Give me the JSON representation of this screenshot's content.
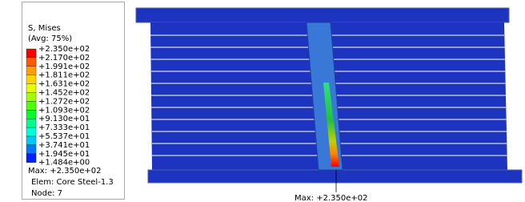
{
  "legend": {
    "title": "S, Mises",
    "subtitle": "(Avg: 75%)",
    "labels": [
      "+2.350e+02",
      "+2.170e+02",
      "+1.991e+02",
      "+1.811e+02",
      "+1.631e+02",
      "+1.452e+02",
      "+1.272e+02",
      "+1.093e+02",
      "+9.130e+01",
      "+7.333e+01",
      "+5.537e+01",
      "+3.741e+01",
      "+1.945e+01",
      "+1.484e+00"
    ],
    "colors": [
      "#ff0000",
      "#ff5a00",
      "#ffa000",
      "#ffd400",
      "#e6ff00",
      "#a0ff00",
      "#4eff00",
      "#00ff24",
      "#00ff8a",
      "#00ffd8",
      "#00c8ff",
      "#0078ff",
      "#0020ff"
    ],
    "max": "Max: +2.350e+02",
    "elem": "Elem: Core Steel-1.3",
    "node": "Node: 7"
  },
  "annotation": "Max: +2.350e+02"
}
